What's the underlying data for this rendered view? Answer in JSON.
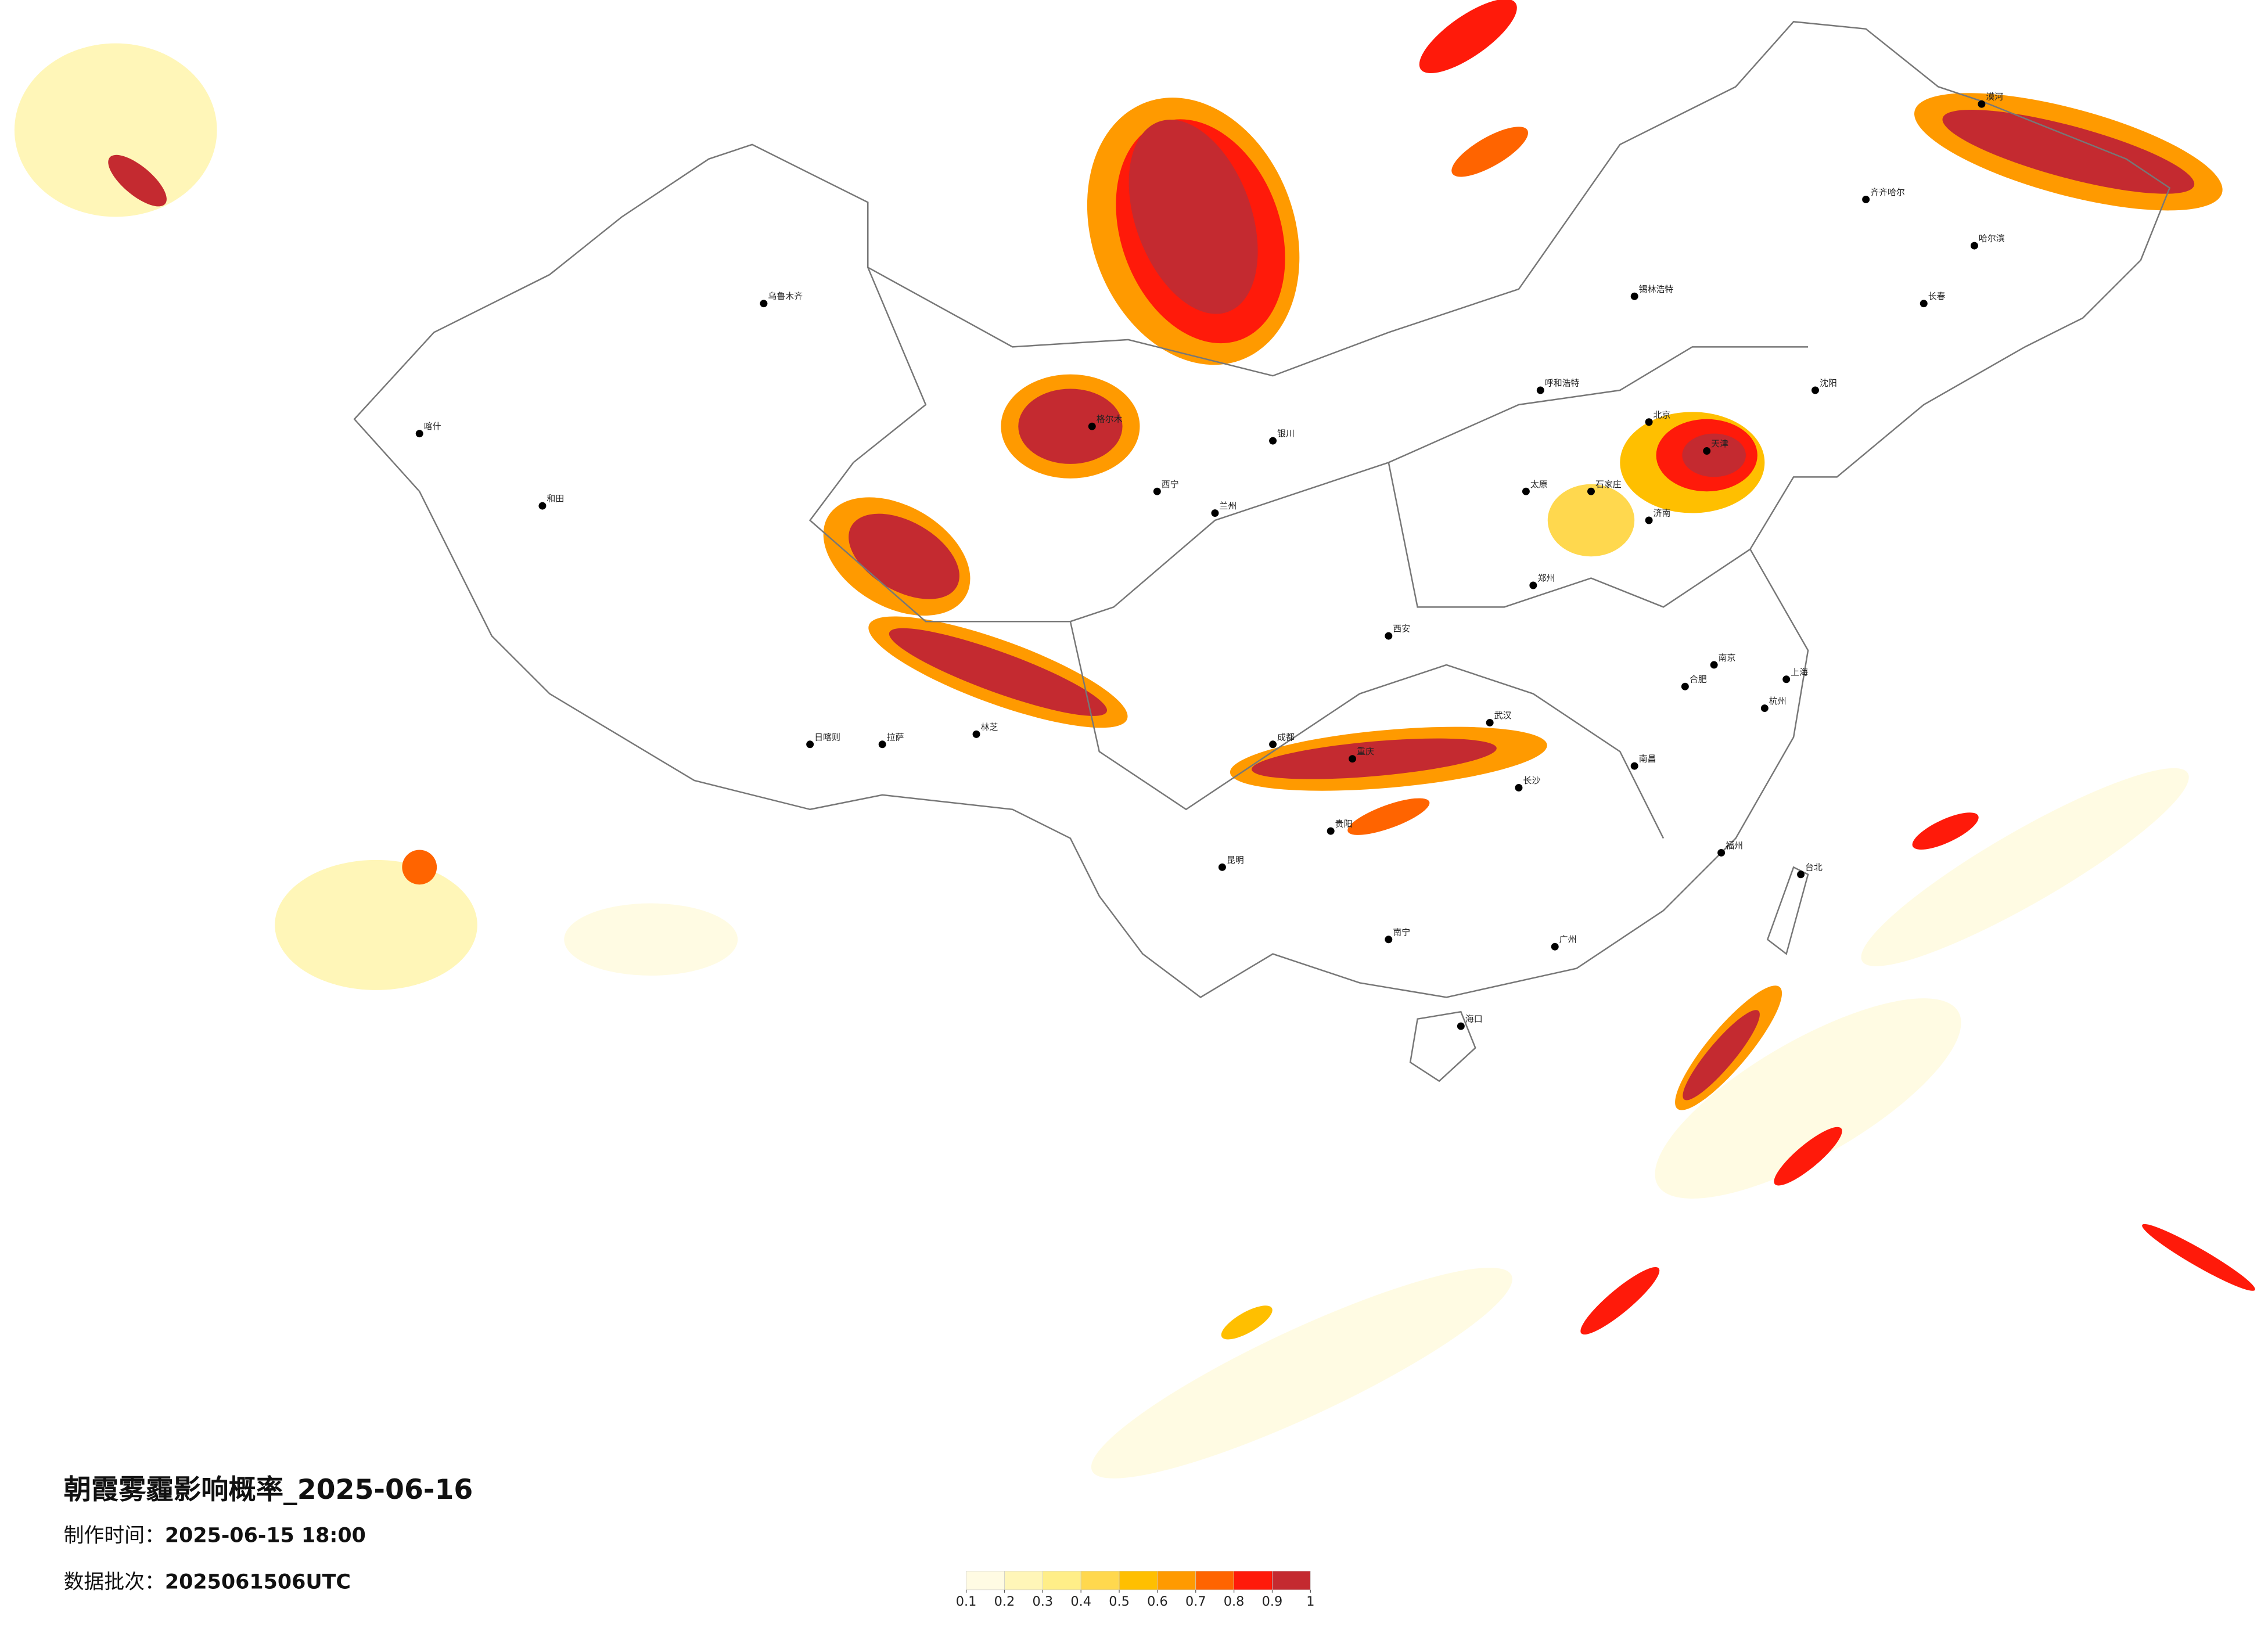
{
  "header": {
    "title": "朝霞雾霾影响概率_2025-06-16",
    "made_time_label": "制作时间：",
    "made_time": "2025-06-15 18:00",
    "batch_label": "数据批次：",
    "batch": "2025061506UTC"
  },
  "legend": {
    "colors": [
      "#fffbe3",
      "#fff6b8",
      "#ffee88",
      "#ffd84e",
      "#ffbf00",
      "#ff9a00",
      "#ff6400",
      "#ff1a0a",
      "#c42a30"
    ],
    "ticks": [
      0.1,
      0.2,
      0.3,
      0.4,
      0.5,
      0.6,
      0.7,
      0.8,
      0.9,
      1
    ]
  },
  "map": {
    "cities": [
      "北京",
      "天津",
      "上海",
      "广州",
      "成都",
      "重庆",
      "武汉",
      "西安",
      "哈尔滨",
      "沈阳",
      "乌鲁木齐",
      "拉萨",
      "昆明",
      "南宁",
      "海口",
      "福州",
      "杭州",
      "南京",
      "济南",
      "郑州",
      "长沙",
      "贵阳",
      "兰州",
      "西宁",
      "呼和浩特",
      "银川",
      "太原",
      "石家庄",
      "长春",
      "合肥",
      "南昌",
      "台北",
      "和田",
      "喀什",
      "格尔木",
      "日喀则",
      "林芝",
      "漠河",
      "齐齐哈尔",
      "锡林浩特"
    ]
  }
}
